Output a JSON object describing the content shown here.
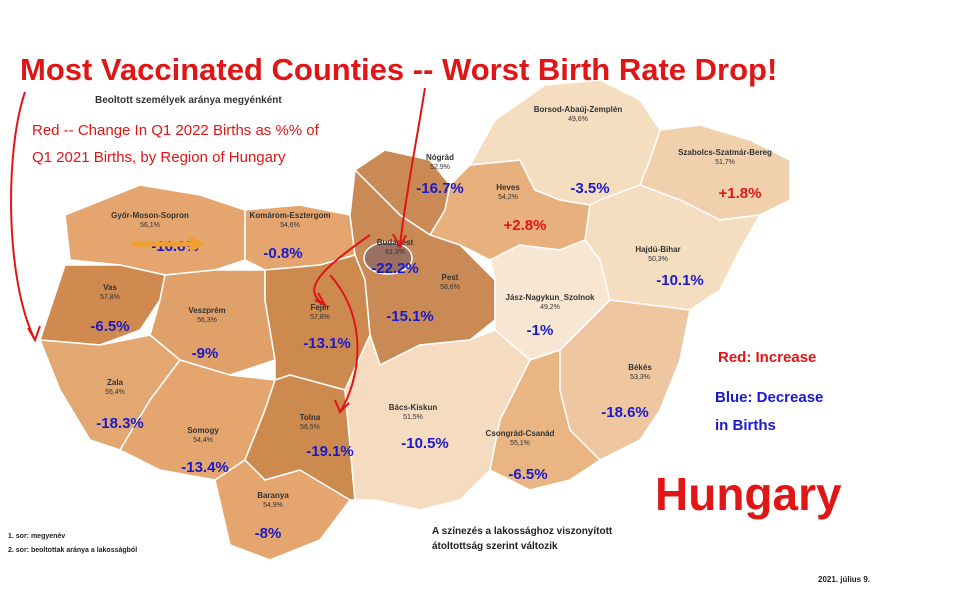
{
  "headline": "Most Vaccinated Counties -- Worst Birth Rate Drop!",
  "map_title": "Beoltott személyek aránya megyénként",
  "note": [
    "Red -- Change In Q1 2022 Births as %% of",
    "Q1 2021 Births, by Region of Hungary"
  ],
  "counties": [
    {
      "name": "Győr-Moson-Sopron",
      "rate": "56,1%",
      "change": "-16.8%",
      "color": "#1a1acc"
    },
    {
      "name": "Komárom-Esztergom",
      "rate": "54,6%",
      "change": "-0.8%",
      "color": "#1a1acc"
    },
    {
      "name": "Nógrád",
      "rate": "52,9%",
      "change": "-16.7%",
      "color": "#1a1acc"
    },
    {
      "name": "Heves",
      "rate": "54,2%",
      "change": "+2.8%",
      "color": "#e01515"
    },
    {
      "name": "Borsod-Abaúj-Zemplén",
      "rate": "49,6%",
      "change": "-3.5%",
      "color": "#1a1acc"
    },
    {
      "name": "Szabolcs-Szatmár-Bereg",
      "rate": "51,7%",
      "change": "+1.8%",
      "color": "#e01515"
    },
    {
      "name": "Budapest",
      "rate": "61,3%",
      "change": "-22.2%",
      "color": "#1a1acc"
    },
    {
      "name": "Pest",
      "rate": "58,6%",
      "change": "-15.1%",
      "color": "#1a1acc"
    },
    {
      "name": "Vas",
      "rate": "57,8%",
      "change": "-6.5%",
      "color": "#1a1acc"
    },
    {
      "name": "Veszprém",
      "rate": "56,3%",
      "change": "-9%",
      "color": "#1a1acc"
    },
    {
      "name": "Fejér",
      "rate": "57,8%",
      "change": "-13.1%",
      "color": "#1a1acc"
    },
    {
      "name": "Jász-Nagykun_Szolnok",
      "rate": "49,2%",
      "change": "-1%",
      "color": "#1a1acc"
    },
    {
      "name": "Hajdú-Bihar",
      "rate": "50,3%",
      "change": "-10.1%",
      "color": "#1a1acc"
    },
    {
      "name": "Zala",
      "rate": "55,4%",
      "change": "-18.3%",
      "color": "#1a1acc"
    },
    {
      "name": "Somogy",
      "rate": "54,4%",
      "change": "-13.4%",
      "color": "#1a1acc"
    },
    {
      "name": "Tolna",
      "rate": "56,5%",
      "change": "-19.1%",
      "color": "#1a1acc"
    },
    {
      "name": "Bács-Kiskun",
      "rate": "51,5%",
      "change": "-10.5%",
      "color": "#1a1acc"
    },
    {
      "name": "Csongrád-Csanád",
      "rate": "55,1%",
      "change": "-6.5%",
      "color": "#1a1acc"
    },
    {
      "name": "Békés",
      "rate": "53,3%",
      "change": "-18.6%",
      "color": "#1a1acc"
    },
    {
      "name": "Baranya",
      "rate": "54,9%",
      "change": "-8%",
      "color": "#1a1acc"
    }
  ],
  "legend": {
    "increase": "Red: Increase",
    "decrease": [
      "Blue: Decrease",
      "in Births"
    ]
  },
  "country": "Hungary",
  "footnotes": [
    "1. sor: megyenév",
    "2. sor: beoltottak aránya a lakosságból"
  ],
  "caption": [
    "A színezés a lakossághoz viszonyított",
    "átoltottság szerint változik"
  ],
  "date": "2021. július 9."
}
